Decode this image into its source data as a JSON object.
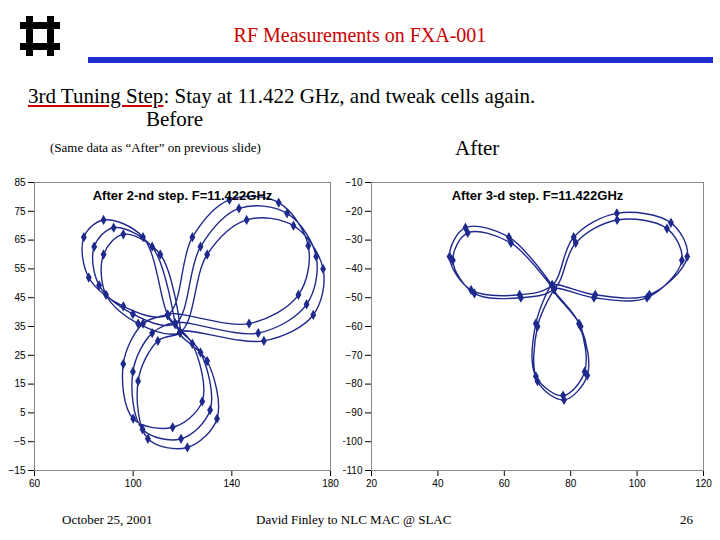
{
  "slide": {
    "title": "RF Measurements on FXA-001",
    "heading_lead": "3rd Tuning Step",
    "heading_rest": ": Stay at 11.422 GHz, and tweak cells again.",
    "before": "Before",
    "before_note": "(Same data as “After” on previous slide)",
    "after": "After",
    "footer_date": "October 25, 2001",
    "footer_text": "David Finley to NLC MAC @ SLAC",
    "footer_page": "26"
  },
  "chart_data": [
    {
      "type": "scatter",
      "title": "After 2-nd step. F=11.422GHz",
      "color": "#1f2a8c",
      "marker": "diamond",
      "line_style": "solid",
      "xlim": [
        60,
        180
      ],
      "xticks": [
        60,
        100,
        140,
        180
      ],
      "ylim": [
        -15,
        85
      ],
      "yticks": [
        -15,
        -5,
        5,
        15,
        25,
        35,
        45,
        55,
        65,
        75,
        85
      ],
      "x": [
        117,
        107.7,
        92.1,
        84.2,
        86.2,
        99.9,
        117,
        127.3,
        142.9,
        162.4,
        174.2,
        170.3,
        150.7,
        117,
        127.3,
        131.2,
        119.4,
        103.8,
        99.9,
        107.7,
        117,
        119,
        111,
        96,
        88,
        89,
        102,
        119,
        130,
        146,
        165,
        177,
        173,
        153,
        119,
        130,
        134,
        122,
        106,
        102,
        110,
        119,
        114,
        104,
        88,
        80,
        82,
        96,
        114,
        124,
        139,
        159,
        171,
        167,
        147,
        114,
        124,
        128,
        116,
        100,
        96,
        104,
        114
      ],
      "values": [
        36,
        62.7,
        69.3,
        62.7,
        49.3,
        39.3,
        36,
        62.7,
        76,
        74.3,
        59.3,
        42.7,
        32.7,
        36,
        26,
        6,
        -4,
        -0.7,
        19.3,
        32.7,
        36,
        33,
        60,
        67,
        60,
        46,
        36,
        33,
        60,
        72,
        70,
        55,
        39,
        30,
        33,
        23,
        3,
        -7,
        -4,
        16,
        30,
        33,
        39,
        66,
        72,
        66,
        52,
        42,
        39,
        66,
        79,
        78,
        63,
        46,
        36,
        39,
        29,
        9,
        0,
        3,
        22,
        36,
        39
      ]
    },
    {
      "type": "scatter",
      "title": "After 3-d step. F=11.422GHz",
      "color": "#1f2a8c",
      "marker": "diamond",
      "line_style": "solid",
      "xlim": [
        20,
        120
      ],
      "xticks": [
        20,
        40,
        60,
        80,
        100,
        120
      ],
      "ylim": [
        -110,
        -10
      ],
      "yticks": [
        -110,
        -100,
        -90,
        -80,
        -70,
        -60,
        -50,
        -40,
        -30,
        -20,
        -10
      ],
      "x": [
        74.4,
        61.4,
        48.3,
        43.5,
        50,
        64.6,
        74.4,
        80.9,
        93.9,
        110.2,
        115.1,
        103.7,
        87.4,
        74.4,
        82.5,
        84.2,
        77.7,
        69.5,
        69.5,
        74.4,
        75,
        62,
        49,
        44.5,
        51,
        65,
        75,
        81.5,
        94,
        109,
        113.5,
        103,
        87,
        75,
        83,
        85,
        78,
        70,
        70,
        75
      ],
      "values": [
        -45.7,
        -29,
        -25.7,
        -35.7,
        -47.3,
        -49,
        -45.7,
        -29,
        -20.7,
        -24,
        -35.7,
        -49,
        -49,
        -45.7,
        -59,
        -75.7,
        -84,
        -77.3,
        -59,
        -45.7,
        -47,
        -31,
        -27.5,
        -37,
        -48.5,
        -50,
        -47,
        -31,
        -23,
        -26,
        -37,
        -50,
        -50,
        -47,
        -60,
        -77,
        -85.5,
        -79,
        -60,
        -47
      ]
    }
  ]
}
